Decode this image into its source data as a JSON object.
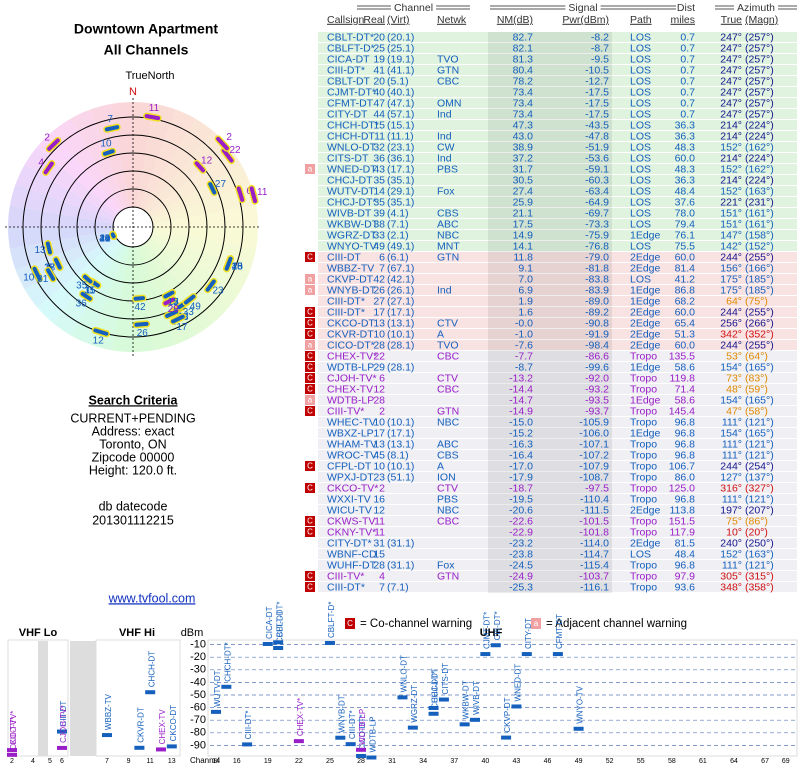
{
  "header": {
    "title": "Downtown Apartment",
    "subtitle": "All Channels"
  },
  "polar": {
    "label": "TrueNorth",
    "north": "N"
  },
  "criteria": {
    "heading": "Search Criteria",
    "lines": [
      "CURRENT+PENDING",
      "Address: exact",
      "Toronto, ON",
      "Zipcode 00000",
      "Height: 120.0 ft."
    ]
  },
  "datecode": {
    "label": "db datecode",
    "value": "201301112215"
  },
  "link": "www.tvfool.com",
  "table": {
    "groups": [
      "Channel",
      "Signal",
      "Dist",
      "Azimuth"
    ],
    "columns": [
      "Callsign",
      "Real",
      "(Virt)",
      "Netwk",
      "NM(dB)",
      "Pwr(dBm)",
      "Path",
      "miles",
      "True",
      "(Magn)"
    ],
    "rows": [
      {
        "cells": [
          "CBLT-DT*",
          "20",
          "(20.1)",
          null,
          "82.7",
          "-8.2",
          "LOS",
          "0.7",
          "247°",
          "(257°)"
        ],
        "bg": "#dff3df",
        "color": "#1560bd",
        "az_color": "#14148c"
      },
      {
        "cells": [
          "CBLFT-D*",
          "25",
          "(25.1)",
          null,
          "82.1",
          "-8.7",
          "LOS",
          "0.7",
          "247°",
          "(257°)"
        ],
        "bg": "#dff3df",
        "color": "#1560bd",
        "az_color": "#14148c"
      },
      {
        "cells": [
          "CICA-DT",
          "19",
          "(19.1)",
          "TVO",
          "81.3",
          "-9.5",
          "LOS",
          "0.7",
          "247°",
          "(257°)"
        ],
        "bg": "#dff3df",
        "color": "#1560bd",
        "az_color": "#14148c"
      },
      {
        "cells": [
          "CIII-DT*",
          "41",
          "(41.1)",
          "GTN",
          "80.4",
          "-10.5",
          "LOS",
          "0.7",
          "247°",
          "(257°)"
        ],
        "bg": "#dff3df",
        "color": "#1560bd",
        "az_color": "#14148c"
      },
      {
        "cells": [
          "CBLT-DT",
          "20",
          "(5.1)",
          "CBC",
          "78.2",
          "-12.7",
          "LOS",
          "0.7",
          "247°",
          "(257°)"
        ],
        "bg": "#dff3df",
        "color": "#1560bd",
        "az_color": "#14148c"
      },
      {
        "cells": [
          "CJMT-DT*",
          "40",
          "(40.1)",
          null,
          "73.4",
          "-17.5",
          "LOS",
          "0.7",
          "247°",
          "(257°)"
        ],
        "bg": "#dff3df",
        "color": "#1560bd",
        "az_color": "#14148c"
      },
      {
        "cells": [
          "CFMT-DT",
          "47",
          "(47.1)",
          "OMN",
          "73.4",
          "-17.5",
          "LOS",
          "0.7",
          "247°",
          "(257°)"
        ],
        "bg": "#dff3df",
        "color": "#1560bd",
        "az_color": "#14148c"
      },
      {
        "cells": [
          "CITY-DT",
          "44",
          "(57.1)",
          "Ind",
          "73.4",
          "-17.5",
          "LOS",
          "0.7",
          "247°",
          "(257°)"
        ],
        "bg": "#dff3df",
        "color": "#1560bd",
        "az_color": "#14148c"
      },
      {
        "cells": [
          "CHCH-DT*",
          "15",
          "(15.1)",
          null,
          "47.3",
          "-43.5",
          "LOS",
          "36.3",
          "214°",
          "(224°)"
        ],
        "bg": "#dff3df",
        "color": "#1560bd",
        "az_color": "#14148c"
      },
      {
        "cells": [
          "CHCH-DT",
          "11",
          "(11.1)",
          "Ind",
          "43.0",
          "-47.8",
          "LOS",
          "36.3",
          "214°",
          "(224°)"
        ],
        "bg": "#dff3df",
        "color": "#1560bd",
        "az_color": "#14148c"
      },
      {
        "cells": [
          "WNLO-DT",
          "32",
          "(23.1)",
          "CW",
          "38.9",
          "-51.9",
          "LOS",
          "48.3",
          "152°",
          "(162°)"
        ],
        "bg": "#dff3df",
        "color": "#1560bd",
        "az_color": "#1560bd"
      },
      {
        "cells": [
          "CITS-DT",
          "36",
          "(36.1)",
          "Ind",
          "37.2",
          "-53.6",
          "LOS",
          "60.0",
          "214°",
          "(224°)"
        ],
        "bg": "#dff3df",
        "color": "#1560bd",
        "az_color": "#14148c"
      },
      {
        "cells": [
          "WNED-DT",
          "43",
          "(17.1)",
          "PBS",
          "31.7",
          "-59.1",
          "LOS",
          "48.3",
          "152°",
          "(162°)"
        ],
        "bg": "#dff3df",
        "color": "#1560bd",
        "az_color": "#1560bd",
        "warn": "a"
      },
      {
        "cells": [
          "CHCJ-DT",
          "35",
          "(35.1)",
          null,
          "30.5",
          "-60.3",
          "LOS",
          "36.3",
          "214°",
          "(224°)"
        ],
        "bg": "#dff3df",
        "color": "#1560bd",
        "az_color": "#14148c"
      },
      {
        "cells": [
          "WUTV-DT",
          "14",
          "(29.1)",
          "Fox",
          "27.4",
          "-63.4",
          "LOS",
          "48.4",
          "152°",
          "(163°)"
        ],
        "bg": "#dff3df",
        "color": "#1560bd",
        "az_color": "#1560bd"
      },
      {
        "cells": [
          "CHCJ-DT*",
          "35",
          "(35.1)",
          null,
          "25.9",
          "-64.9",
          "LOS",
          "37.6",
          "221°",
          "(231°)"
        ],
        "bg": "#dff3df",
        "color": "#1560bd",
        "az_color": "#14148c"
      },
      {
        "cells": [
          "WIVB-DT",
          "39",
          "(4.1)",
          "CBS",
          "21.1",
          "-69.7",
          "LOS",
          "78.0",
          "151°",
          "(161°)"
        ],
        "bg": "#dff3df",
        "color": "#1560bd",
        "az_color": "#1560bd"
      },
      {
        "cells": [
          "WKBW-DT",
          "38",
          "(7.1)",
          "ABC",
          "17.5",
          "-73.3",
          "LOS",
          "79.4",
          "151°",
          "(161°)"
        ],
        "bg": "#dff3df",
        "color": "#1560bd",
        "az_color": "#1560bd"
      },
      {
        "cells": [
          "WGRZ-DT",
          "33",
          "(2.1)",
          "NBC",
          "14.9",
          "-75.9",
          "1Edge",
          "76.1",
          "147°",
          "(158°)"
        ],
        "bg": "#dff3df",
        "color": "#1560bd",
        "az_color": "#1560bd"
      },
      {
        "cells": [
          "WNYO-TV",
          "49",
          "(49.1)",
          "MNT",
          "14.1",
          "-76.8",
          "LOS",
          "75.5",
          "142°",
          "(152°)"
        ],
        "bg": "#dff3df",
        "color": "#1560bd",
        "az_color": "#1560bd"
      },
      {
        "cells": [
          "CIII-DT",
          "6",
          "(6.1)",
          "GTN",
          "11.8",
          "-79.0",
          "2Edge",
          "60.0",
          "244°",
          "(255°)"
        ],
        "bg": "#f9e2e2",
        "color": "#1560bd",
        "az_color": "#14148c",
        "warn": "C"
      },
      {
        "cells": [
          "WBBZ-TV",
          "7",
          "(67.1)",
          null,
          "9.1",
          "-81.8",
          "2Edge",
          "81.4",
          "156°",
          "(166°)"
        ],
        "bg": "#f9e2e2",
        "color": "#1560bd",
        "az_color": "#1560bd"
      },
      {
        "cells": [
          "CKVP-DT",
          "42",
          "(42.1)",
          null,
          "7.0",
          "-83.8",
          "LOS",
          "41.2",
          "175°",
          "(185°)"
        ],
        "bg": "#f9e2e2",
        "color": "#1560bd",
        "az_color": "#1560bd",
        "warn": "a"
      },
      {
        "cells": [
          "WNYB-DT",
          "26",
          "(26.1)",
          "Ind",
          "6.9",
          "-83.9",
          "1Edge",
          "86.8",
          "175°",
          "(185°)"
        ],
        "bg": "#f9e2e2",
        "color": "#1560bd",
        "az_color": "#1560bd",
        "warn": "a"
      },
      {
        "cells": [
          "CIII-DT*",
          "27",
          "(27.1)",
          null,
          "1.9",
          "-89.0",
          "1Edge",
          "68.2",
          "64°",
          "(75°)"
        ],
        "bg": "#f9e2e2",
        "color": "#1560bd",
        "az_color": "#e08a00"
      },
      {
        "cells": [
          "CIII-DT*",
          "17",
          "(17.1)",
          null,
          "1.6",
          "-89.2",
          "2Edge",
          "60.0",
          "244°",
          "(255°)"
        ],
        "bg": "#f9e2e2",
        "color": "#1560bd",
        "az_color": "#14148c",
        "warn": "C"
      },
      {
        "cells": [
          "CKCO-DT",
          "13",
          "(13.1)",
          "CTV",
          "-0.0",
          "-90.8",
          "2Edge",
          "65.4",
          "256°",
          "(266°)"
        ],
        "bg": "#f9e2e2",
        "color": "#1560bd",
        "az_color": "#14148c",
        "warn": "C"
      },
      {
        "cells": [
          "CKVR-DT",
          "10",
          "(10.1)",
          "A",
          "-1.0",
          "-91.9",
          "2Edge",
          "51.3",
          "342°",
          "(352°)"
        ],
        "bg": "#f9e2e2",
        "color": "#1560bd",
        "az_color": "#d01010",
        "warn": "C"
      },
      {
        "cells": [
          "CICO-DT*",
          "28",
          "(28.1)",
          "TVO",
          "-7.6",
          "-98.4",
          "2Edge",
          "60.0",
          "244°",
          "(255°)"
        ],
        "bg": "#f9e2e2",
        "color": "#1560bd",
        "az_color": "#14148c",
        "warn": "a"
      },
      {
        "cells": [
          "CHEX-TV*",
          "22",
          null,
          "CBC",
          "-7.7",
          "-86.6",
          "Tropo",
          "135.5",
          "53°",
          "(64°)"
        ],
        "bg": "#efeff4",
        "color": "#9a1ec8",
        "az_color": "#e08a00",
        "warn": "C"
      },
      {
        "cells": [
          "WDTB-LP",
          "29",
          "(28.1)",
          null,
          "-8.7",
          "-99.6",
          "1Edge",
          "58.6",
          "154°",
          "(165°)"
        ],
        "bg": "#efeff4",
        "color": "#1560bd",
        "az_color": "#1560bd",
        "warn": "C"
      },
      {
        "cells": [
          "CJOH-TV*",
          "6",
          null,
          "CTV",
          "-13.2",
          "-92.0",
          "Tropo",
          "119.8",
          "73°",
          "(83°)"
        ],
        "bg": "#efeff4",
        "color": "#9a1ec8",
        "az_color": "#e08a00",
        "warn": "C"
      },
      {
        "cells": [
          "CHEX-TV",
          "12",
          null,
          "CBC",
          "-14.4",
          "-93.2",
          "Tropo",
          "71.4",
          "48°",
          "(59°)"
        ],
        "bg": "#efeff4",
        "color": "#9a1ec8",
        "az_color": "#e08a00",
        "warn": "C"
      },
      {
        "cells": [
          "WDTB-LP",
          "28",
          null,
          null,
          "-14.7",
          "-93.5",
          "1Edge",
          "58.6",
          "154°",
          "(165°)"
        ],
        "bg": "#efeff4",
        "color": "#9a1ec8",
        "az_color": "#1560bd",
        "warn": "a"
      },
      {
        "cells": [
          "CIII-TV*",
          "2",
          null,
          "GTN",
          "-14.9",
          "-93.7",
          "Tropo",
          "145.4",
          "47°",
          "(58°)"
        ],
        "bg": "#efeff4",
        "color": "#9a1ec8",
        "az_color": "#e08a00",
        "warn": "C"
      },
      {
        "cells": [
          "WHEC-TV",
          "10",
          "(10.1)",
          "NBC",
          "-15.0",
          "-105.9",
          "Tropo",
          "96.8",
          "111°",
          "(121°)"
        ],
        "bg": "#efeff4",
        "color": "#1560bd",
        "az_color": "#1560bd"
      },
      {
        "cells": [
          "WBXZ-LP",
          "17",
          "(17.1)",
          null,
          "-15.2",
          "-106.0",
          "1Edge",
          "96.8",
          "154°",
          "(165°)"
        ],
        "bg": "#efeff4",
        "color": "#1560bd",
        "az_color": "#1560bd"
      },
      {
        "cells": [
          "WHAM-TV",
          "13",
          "(13.1)",
          "ABC",
          "-16.3",
          "-107.1",
          "Tropo",
          "96.8",
          "111°",
          "(121°)"
        ],
        "bg": "#efeff4",
        "color": "#1560bd",
        "az_color": "#1560bd"
      },
      {
        "cells": [
          "WROC-TV",
          "45",
          "(8.1)",
          "CBS",
          "-16.4",
          "-107.2",
          "Tropo",
          "96.8",
          "111°",
          "(121°)"
        ],
        "bg": "#efeff4",
        "color": "#1560bd",
        "az_color": "#1560bd"
      },
      {
        "cells": [
          "CFPL-DT",
          "10",
          "(10.1)",
          "A",
          "-17.0",
          "-107.9",
          "Tropo",
          "106.7",
          "244°",
          "(254°)"
        ],
        "bg": "#efeff4",
        "color": "#1560bd",
        "az_color": "#14148c",
        "warn": "C"
      },
      {
        "cells": [
          "WPXJ-DT",
          "23",
          "(51.1)",
          "ION",
          "-17.9",
          "-108.7",
          "Tropo",
          "86.0",
          "127°",
          "(137°)"
        ],
        "bg": "#efeff4",
        "color": "#1560bd",
        "az_color": "#1560bd"
      },
      {
        "cells": [
          "CKCO-TV*",
          "2",
          null,
          "CTV",
          "-18.7",
          "-97.5",
          "Tropo",
          "125.0",
          "316°",
          "(327°)"
        ],
        "bg": "#efeff4",
        "color": "#9a1ec8",
        "az_color": "#d01010",
        "warn": "C"
      },
      {
        "cells": [
          "WXXI-TV",
          "16",
          null,
          "PBS",
          "-19.5",
          "-110.4",
          "Tropo",
          "96.8",
          "111°",
          "(121°)"
        ],
        "bg": "#efeff4",
        "color": "#1560bd",
        "az_color": "#1560bd"
      },
      {
        "cells": [
          "WICU-TV",
          "12",
          null,
          "NBC",
          "-20.6",
          "-111.5",
          "2Edge",
          "113.8",
          "197°",
          "(207°)"
        ],
        "bg": "#efeff4",
        "color": "#1560bd",
        "az_color": "#14148c"
      },
      {
        "cells": [
          "CKWS-TV",
          "11",
          null,
          "CBC",
          "-22.6",
          "-101.5",
          "Tropo",
          "151.5",
          "75°",
          "(86°)"
        ],
        "bg": "#efeff4",
        "color": "#9a1ec8",
        "az_color": "#e08a00",
        "warn": "C"
      },
      {
        "cells": [
          "CKNY-TV*",
          "11",
          null,
          null,
          "-22.9",
          "-101.8",
          "Tropo",
          "117.9",
          "10°",
          "(20°)"
        ],
        "bg": "#efeff4",
        "color": "#9a1ec8",
        "az_color": "#d01010",
        "warn": "C"
      },
      {
        "cells": [
          "CITY-DT*",
          "31",
          "(31.1)",
          null,
          "-23.2",
          "-114.0",
          "2Edge",
          "81.5",
          "240°",
          "(250°)"
        ],
        "bg": "#efeff4",
        "color": "#1560bd",
        "az_color": "#14148c"
      },
      {
        "cells": [
          "WBNF-CD",
          "15",
          null,
          null,
          "-23.8",
          "-114.7",
          "LOS",
          "48.4",
          "152°",
          "(163°)"
        ],
        "bg": "#efeff4",
        "color": "#1560bd",
        "az_color": "#1560bd"
      },
      {
        "cells": [
          "WUHF-DT",
          "28",
          "(31.1)",
          "Fox",
          "-24.5",
          "-115.4",
          "Tropo",
          "96.8",
          "111°",
          "(121°)"
        ],
        "bg": "#efeff4",
        "color": "#1560bd",
        "az_color": "#1560bd"
      },
      {
        "cells": [
          "CIII-TV*",
          "4",
          null,
          "GTN",
          "-24.9",
          "-103.7",
          "Tropo",
          "97.9",
          "305°",
          "(315°)"
        ],
        "bg": "#efeff4",
        "color": "#9a1ec8",
        "az_color": "#d01010",
        "warn": "C"
      },
      {
        "cells": [
          "CIII-DT*",
          "7",
          "(7.1)",
          null,
          "-25.3",
          "-116.1",
          "Tropo",
          "93.6",
          "348°",
          "(358°)"
        ],
        "bg": "#efeff4",
        "color": "#1560bd",
        "az_color": "#d01010",
        "warn": "C"
      }
    ]
  },
  "legend": [
    {
      "mark": "C",
      "text": "= Co-channel warning",
      "color": "#c00000"
    },
    {
      "mark": "a",
      "text": "= Adjacent channel warning",
      "color": "#f0a0a0"
    }
  ],
  "spectrum": {
    "bands": [
      "VHF Lo",
      "VHF Hi",
      "UHF"
    ],
    "y_label": "dBm",
    "x_label": "Channel",
    "ylim": [
      -100,
      0
    ],
    "yticks": [
      -10,
      -20,
      -30,
      -40,
      -50,
      -60,
      -70,
      -80,
      -90
    ],
    "xticks": [
      2,
      4,
      5,
      6,
      7,
      9,
      11,
      13,
      14,
      16,
      19,
      22,
      25,
      28,
      31,
      34,
      37,
      40,
      43,
      46,
      49,
      52,
      55,
      58,
      61,
      64,
      67,
      69
    ]
  }
}
